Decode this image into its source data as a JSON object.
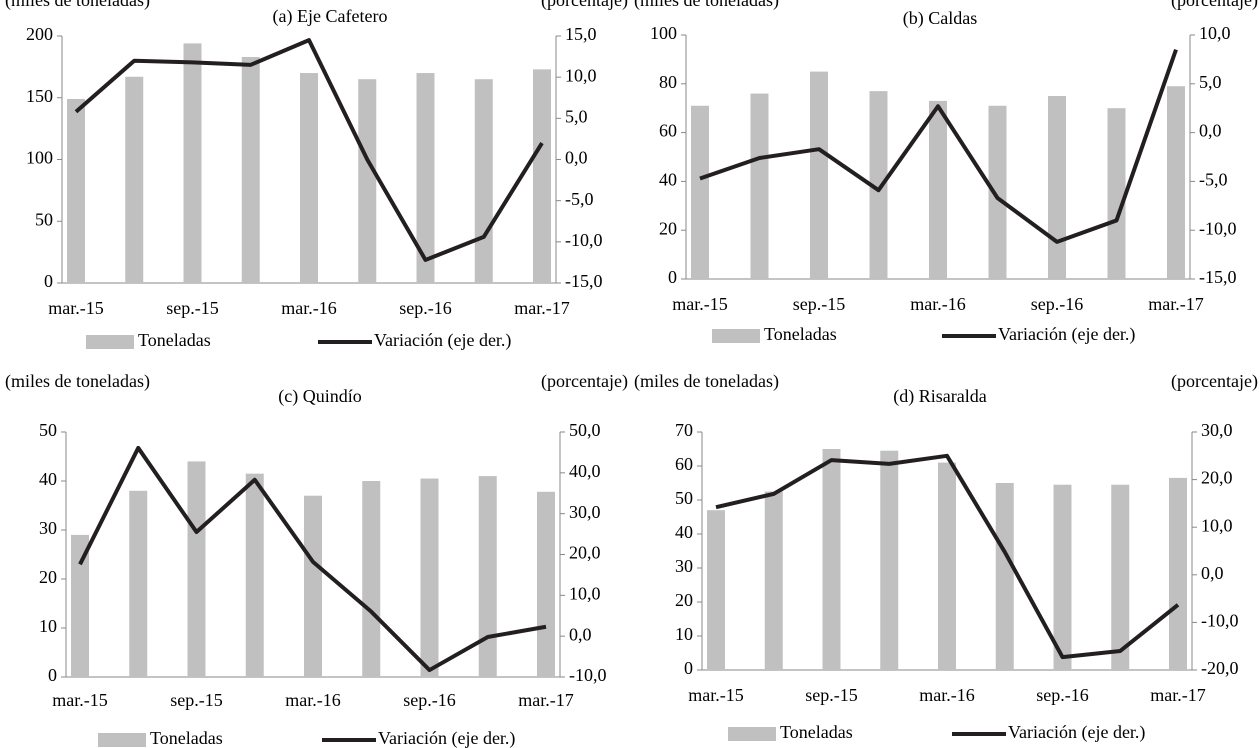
{
  "chart_data": [
    {
      "type": "bar-line",
      "title": "(a) Eje Cafetero",
      "y_unit": "(miles de toneladas)",
      "y2_unit": "(porcentaje)",
      "categories": [
        "mar.-15",
        null,
        "sep.-15",
        null,
        "mar.-16",
        null,
        "sep.-16",
        null,
        "mar.-17"
      ],
      "series": [
        {
          "name": "Toneladas",
          "type": "bar",
          "color": "#c0c0c0",
          "values": [
            149,
            167,
            194,
            183,
            170,
            165,
            170,
            165,
            173
          ]
        },
        {
          "name": "Variación (eje der.)",
          "type": "line",
          "axis": "y2",
          "color": "#231f20",
          "values": [
            5.8,
            12.0,
            11.8,
            11.5,
            14.5,
            0,
            -12.2,
            -9.4,
            2.0
          ]
        }
      ],
      "ylim": [
        0,
        200
      ],
      "yticks": [
        0,
        50,
        100,
        150,
        200
      ],
      "y2lim": [
        -15,
        15
      ],
      "y2ticks": [
        {
          "value": -15,
          "label": "-15,0"
        },
        {
          "value": -10,
          "label": "-10,0"
        },
        {
          "value": -5,
          "label": "-5,0"
        },
        {
          "value": 0,
          "label": "0,0"
        },
        {
          "value": 5,
          "label": "5,0"
        },
        {
          "value": 10,
          "label": "10,0"
        },
        {
          "value": 15,
          "label": "15,0"
        }
      ]
    },
    {
      "type": "bar-line",
      "title": "(b) Caldas",
      "y_unit": "(miles de toneladas)",
      "y2_unit": "(porcentaje)",
      "categories": [
        "mar.-15",
        null,
        "sep.-15",
        null,
        "mar.-16",
        null,
        "sep.-16",
        null,
        "mar.-17"
      ],
      "series": [
        {
          "name": "Toneladas",
          "type": "bar",
          "color": "#c0c0c0",
          "values": [
            71,
            76,
            85,
            77,
            73,
            71,
            75,
            70,
            79
          ]
        },
        {
          "name": "Variación (eje der.)",
          "type": "line",
          "axis": "y2",
          "color": "#231f20",
          "values": [
            -4.7,
            -2.6,
            -1.7,
            -5.9,
            2.7,
            -6.7,
            -11.2,
            -9.0,
            8.5
          ]
        }
      ],
      "ylim": [
        0,
        100
      ],
      "yticks": [
        0,
        20,
        40,
        60,
        80,
        100
      ],
      "y2lim": [
        -15,
        10
      ],
      "y2ticks": [
        {
          "value": -15,
          "label": "-15,0"
        },
        {
          "value": -10,
          "label": "-10,0"
        },
        {
          "value": -5,
          "label": "-5,0"
        },
        {
          "value": 0,
          "label": "0,0"
        },
        {
          "value": 5,
          "label": "5,0"
        },
        {
          "value": 10,
          "label": "10,0"
        }
      ]
    },
    {
      "type": "bar-line",
      "title": "(c) Quindío",
      "y_unit": "(miles de toneladas)",
      "y2_unit": "(porcentaje)",
      "categories": [
        "mar.-15",
        null,
        "sep.-15",
        null,
        "mar.-16",
        null,
        "sep.-16",
        null,
        "mar.-17"
      ],
      "series": [
        {
          "name": "Toneladas",
          "type": "bar",
          "color": "#c0c0c0",
          "values": [
            29,
            38,
            44,
            41.5,
            37,
            40,
            40.5,
            41,
            37.8
          ]
        },
        {
          "name": "Variación (eje der.)",
          "type": "line",
          "axis": "y2",
          "color": "#231f20",
          "values": [
            17.6,
            46.1,
            25.5,
            38.3,
            18.2,
            6,
            -8.3,
            -0.2,
            2.3
          ]
        }
      ],
      "ylim": [
        0,
        50
      ],
      "yticks": [
        0,
        10,
        20,
        30,
        40,
        50
      ],
      "y2lim": [
        -10,
        50
      ],
      "y2ticks": [
        {
          "value": -10,
          "label": "-10,0"
        },
        {
          "value": 0,
          "label": "0,0"
        },
        {
          "value": 10,
          "label": "10,0"
        },
        {
          "value": 20,
          "label": "20,0"
        },
        {
          "value": 30,
          "label": "30,0"
        },
        {
          "value": 40,
          "label": "40,0"
        },
        {
          "value": 50,
          "label": "50,0"
        }
      ]
    },
    {
      "type": "bar-line",
      "title": "(d) Risaralda",
      "y_unit": "(miles de toneladas)",
      "y2_unit": "(porcentaje)",
      "categories": [
        "mar.-15",
        null,
        "sep.-15",
        null,
        "mar.-16",
        null,
        "sep.-16",
        null,
        "mar.-17"
      ],
      "series": [
        {
          "name": "Toneladas",
          "type": "bar",
          "color": "#c0c0c0",
          "values": [
            47,
            52.5,
            65,
            64.5,
            61,
            55,
            54.5,
            54.5,
            56.5
          ]
        },
        {
          "name": "Variación (eje der.)",
          "type": "line",
          "axis": "y2",
          "color": "#231f20",
          "values": [
            14.2,
            17,
            24.1,
            23.3,
            25,
            4.8,
            -17.3,
            -16,
            -6.3
          ]
        }
      ],
      "ylim": [
        0,
        70
      ],
      "yticks": [
        0,
        10,
        20,
        30,
        40,
        50,
        60,
        70
      ],
      "y2lim": [
        -20,
        30
      ],
      "y2ticks": [
        {
          "value": -20,
          "label": "-20,0"
        },
        {
          "value": -10,
          "label": "-10,0"
        },
        {
          "value": 0,
          "label": "0,0"
        },
        {
          "value": 10,
          "label": "10,0"
        },
        {
          "value": 20,
          "label": "20,0"
        },
        {
          "value": 30,
          "label": "30,0"
        }
      ]
    }
  ]
}
